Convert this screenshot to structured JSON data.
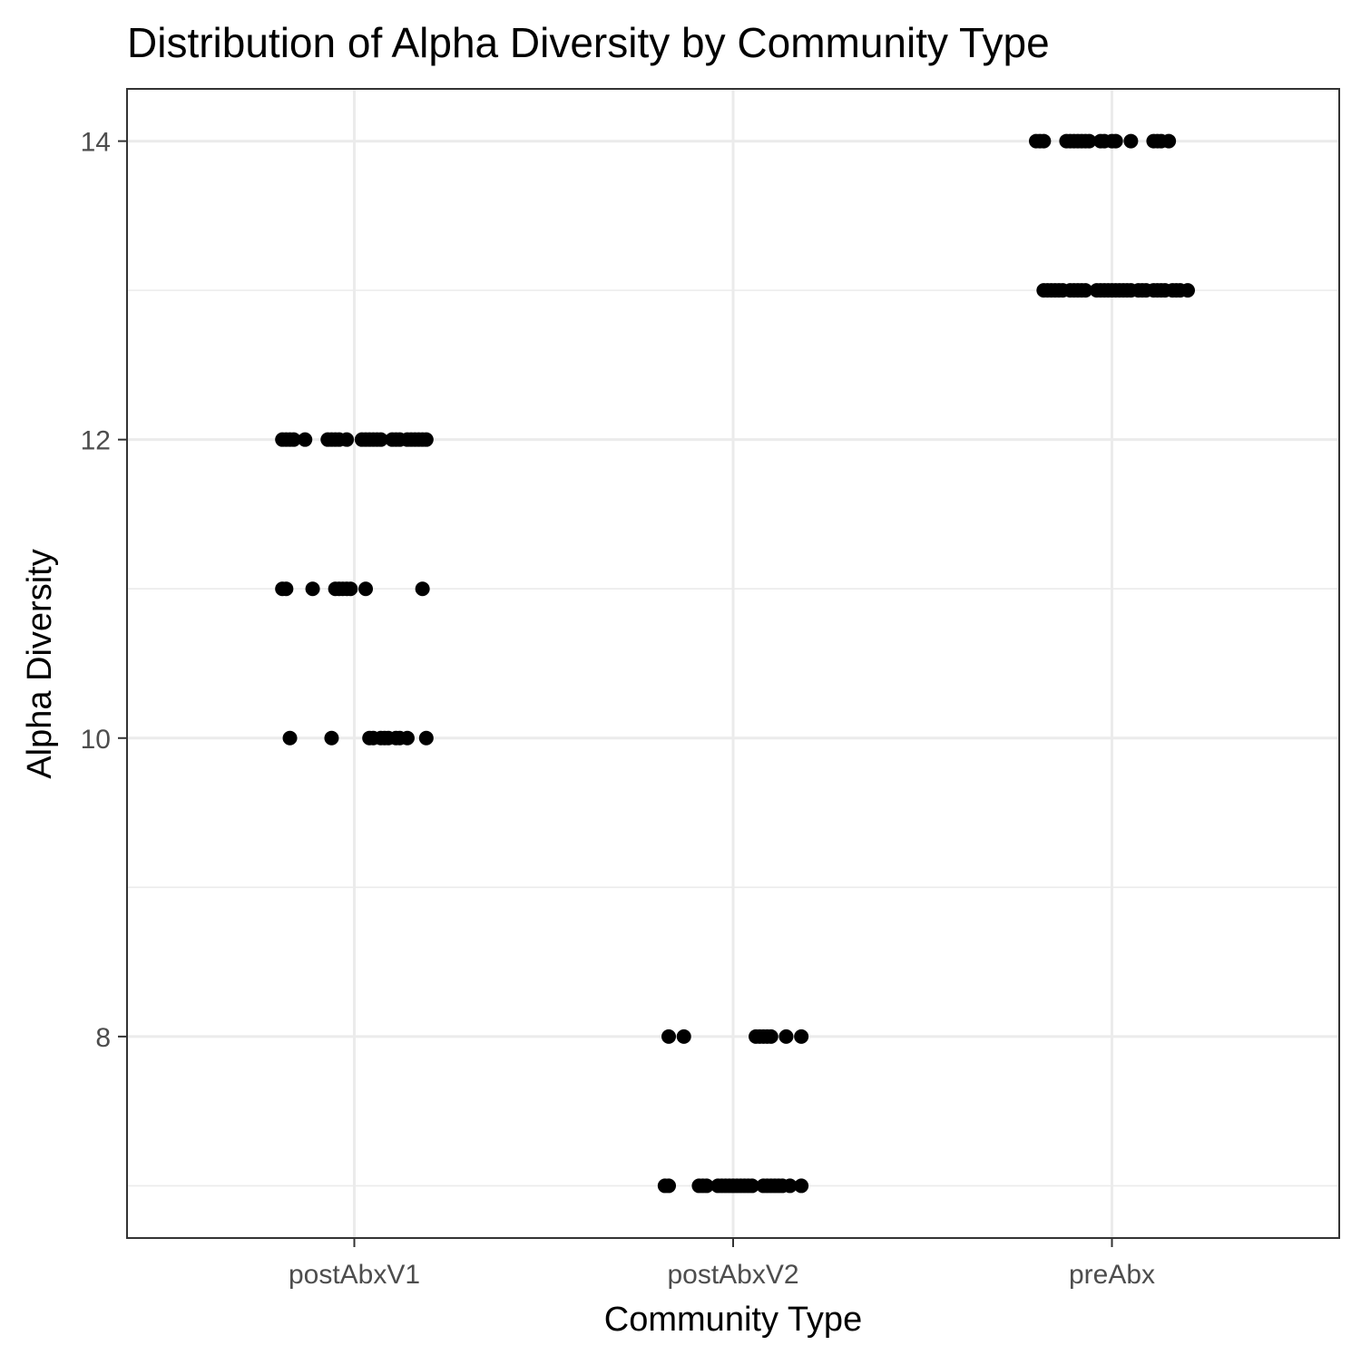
{
  "chart_data": {
    "type": "scatter",
    "title": "Distribution of Alpha Diversity by Community Type",
    "xlabel": "Community Type",
    "ylabel": "Alpha Diversity",
    "categories": [
      "postAbxV1",
      "postAbxV2",
      "preAbx"
    ],
    "y_ticks": [
      8,
      10,
      12,
      14
    ],
    "ylim": [
      6.65,
      14.35
    ],
    "grid": true,
    "point_color": "#000000",
    "jitter_width": 0.4,
    "points": [
      {
        "category": "postAbxV1",
        "y": 12,
        "offsets": [
          -0.19,
          -0.18,
          -0.17,
          -0.16,
          -0.13,
          -0.07,
          -0.06,
          -0.05,
          -0.04,
          -0.02,
          0.02,
          0.03,
          0.04,
          0.05,
          0.06,
          0.07,
          0.1,
          0.11,
          0.12,
          0.14,
          0.15,
          0.16,
          0.17,
          0.18,
          0.19
        ]
      },
      {
        "category": "postAbxV1",
        "y": 11,
        "offsets": [
          -0.19,
          -0.18,
          -0.11,
          -0.05,
          -0.04,
          -0.03,
          -0.02,
          -0.01,
          0.03,
          0.18
        ]
      },
      {
        "category": "postAbxV1",
        "y": 10,
        "offsets": [
          -0.17,
          -0.06,
          0.04,
          0.05,
          0.07,
          0.08,
          0.09,
          0.11,
          0.12,
          0.14,
          0.19
        ]
      },
      {
        "category": "postAbxV2",
        "y": 8,
        "offsets": [
          -0.17,
          -0.13,
          0.06,
          0.07,
          0.08,
          0.09,
          0.1,
          0.14,
          0.18
        ]
      },
      {
        "category": "postAbxV2",
        "y": 7,
        "offsets": [
          -0.18,
          -0.17,
          -0.09,
          -0.08,
          -0.07,
          -0.04,
          -0.03,
          -0.02,
          -0.01,
          0.0,
          0.01,
          0.02,
          0.03,
          0.04,
          0.05,
          0.08,
          0.09,
          0.1,
          0.11,
          0.12,
          0.13,
          0.15,
          0.18
        ]
      },
      {
        "category": "preAbx",
        "y": 14,
        "offsets": [
          -0.2,
          -0.19,
          -0.18,
          -0.12,
          -0.11,
          -0.1,
          -0.09,
          -0.08,
          -0.07,
          -0.06,
          -0.03,
          -0.02,
          0.0,
          0.01,
          0.05,
          0.11,
          0.12,
          0.13,
          0.15
        ]
      },
      {
        "category": "preAbx",
        "y": 13,
        "offsets": [
          -0.18,
          -0.17,
          -0.16,
          -0.15,
          -0.14,
          -0.13,
          -0.11,
          -0.1,
          -0.09,
          -0.08,
          -0.07,
          -0.04,
          -0.03,
          -0.02,
          -0.01,
          0.0,
          0.01,
          0.02,
          0.03,
          0.04,
          0.05,
          0.07,
          0.08,
          0.09,
          0.11,
          0.12,
          0.13,
          0.14,
          0.16,
          0.17,
          0.18,
          0.2
        ]
      }
    ]
  }
}
